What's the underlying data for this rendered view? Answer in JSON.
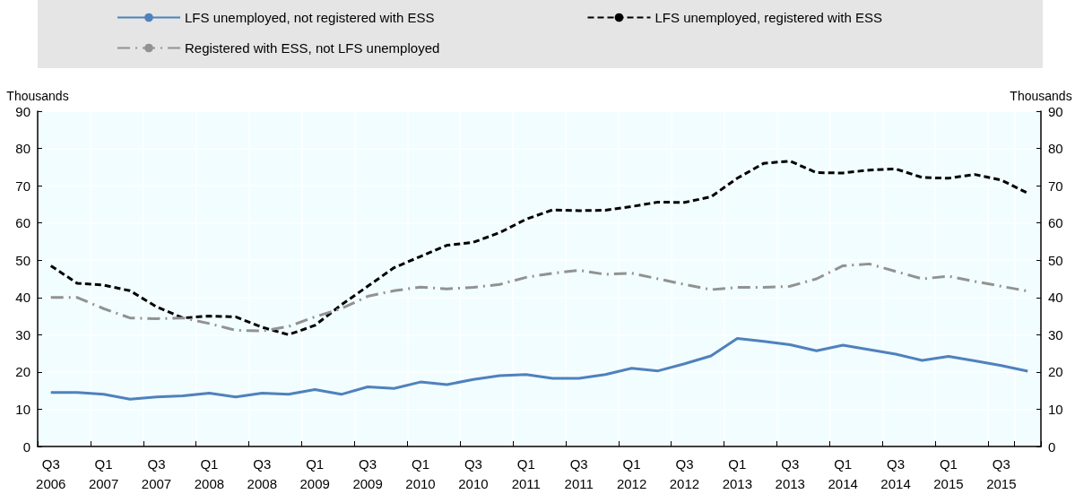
{
  "chart_data": {
    "type": "line",
    "categories": [
      "Q3\n2006",
      null,
      "Q1\n2007",
      null,
      "Q3\n2007",
      null,
      "Q1\n2008",
      null,
      "Q3\n2008",
      null,
      "Q1\n2009",
      null,
      "Q3\n2009",
      null,
      "Q1\n2010",
      null,
      "Q3\n2010",
      null,
      "Q1\n2011",
      null,
      "Q3\n2011",
      null,
      "Q1\n2012",
      null,
      "Q3\n2012",
      null,
      "Q1\n2013",
      null,
      "Q3\n2013",
      null,
      "Q1\n2014",
      null,
      "Q3\n2014",
      null,
      "Q1\n2015",
      null,
      "Q3\n2015",
      null
    ],
    "series": [
      {
        "name": "LFS unemployed, not registered with ESS",
        "color": "#4f81bd",
        "line_style": "solid",
        "values": [
          14.5,
          14.5,
          14,
          12.7,
          13.3,
          13.6,
          14.3,
          13.3,
          14.3,
          14,
          15.3,
          14,
          16,
          15.6,
          17.3,
          16.6,
          18,
          19,
          19.3,
          18.3,
          18.3,
          19.3,
          21,
          20.3,
          22.2,
          24.3,
          29,
          28.2,
          27.3,
          25.7,
          27.2,
          26,
          24.8,
          23.1,
          24.2,
          23,
          21.7,
          20.2
        ]
      },
      {
        "name": "LFS unemployed, registered with ESS",
        "color": "#000000",
        "line_style": "dashed",
        "values": [
          48.5,
          43.8,
          43.3,
          41.8,
          37.5,
          34.5,
          35,
          34.8,
          32,
          30,
          32.5,
          38,
          43,
          48,
          51,
          54,
          54.8,
          57.4,
          61,
          63.5,
          63.3,
          63.4,
          64.4,
          65.6,
          65.5,
          67,
          72,
          76,
          76.6,
          73.5,
          73.4,
          74.2,
          74.5,
          72.2,
          72,
          73,
          71.5,
          68
        ]
      },
      {
        "name": "Registered with ESS, not LFS unemployed",
        "color": "#929292",
        "line_style": "dashdot",
        "values": [
          40,
          40,
          37,
          34.5,
          34.3,
          34.5,
          33,
          31.2,
          31,
          32.2,
          34.8,
          37,
          40.3,
          41.8,
          42.8,
          42.3,
          42.7,
          43.5,
          45.4,
          46.5,
          47.3,
          46.2,
          46.5,
          45,
          43.5,
          42.1,
          42.7,
          42.7,
          43,
          45,
          48.5,
          49,
          47,
          45,
          45.7,
          44.3,
          43,
          41.7
        ]
      }
    ],
    "ylabel": "Thousands",
    "y2label": "Thousands",
    "ylim": [
      0,
      90
    ],
    "yticks": [
      0,
      10,
      20,
      30,
      40,
      50,
      60,
      70,
      80,
      90
    ],
    "y2lim": [
      0,
      90
    ],
    "y2ticks": [
      0,
      10,
      20,
      30,
      40,
      50,
      60,
      70,
      80,
      90
    ],
    "grid": true,
    "legend": "top",
    "marker": "none"
  }
}
